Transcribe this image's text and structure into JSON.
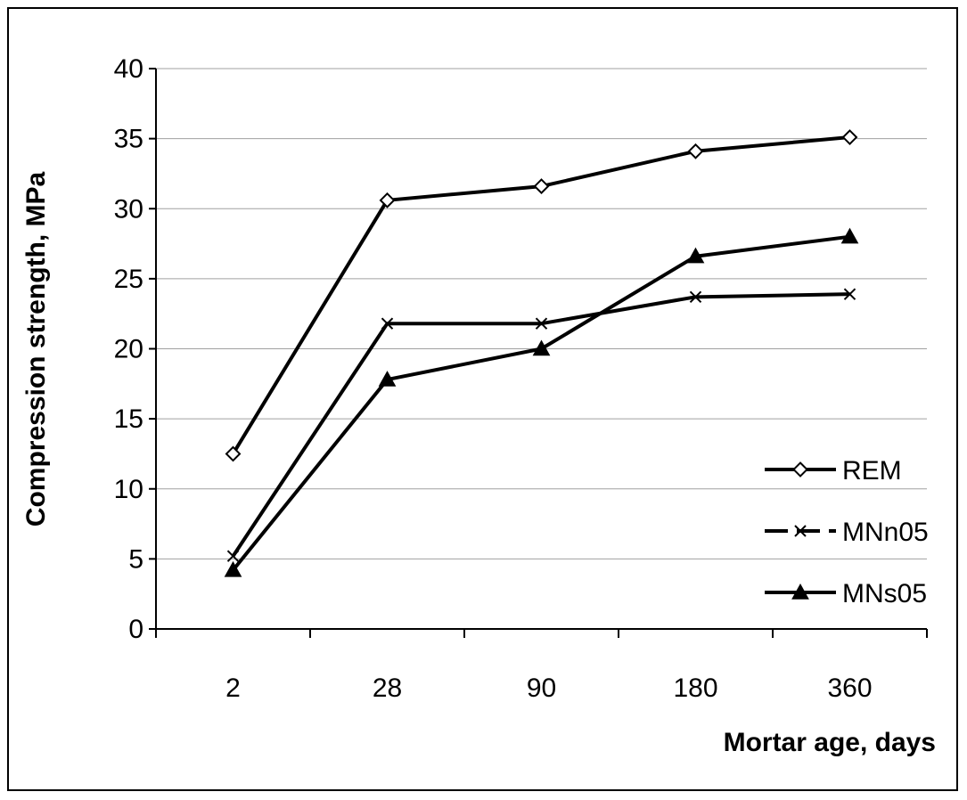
{
  "chart_data": {
    "type": "line",
    "categories": [
      "2",
      "28",
      "90",
      "180",
      "360"
    ],
    "xlabel": "Mortar age, days",
    "ylabel": "Compression strength, MPa",
    "ylim": [
      0,
      40
    ],
    "yticks": [
      "0",
      "5",
      "10",
      "15",
      "20",
      "25",
      "30",
      "35",
      "40"
    ],
    "grid": "horizontal",
    "legend_position": "right",
    "series": [
      {
        "name": "REM",
        "marker": "diamond-open",
        "dash": "solid",
        "values": [
          12.5,
          30.6,
          31.6,
          34.1,
          35.1
        ]
      },
      {
        "name": "MNn05",
        "marker": "x",
        "dash": "dashed",
        "values": [
          5.2,
          21.8,
          21.8,
          23.7,
          23.9
        ]
      },
      {
        "name": "MNs05",
        "marker": "triangle-filled",
        "dash": "solid",
        "values": [
          4.2,
          17.8,
          20.0,
          26.6,
          28.0
        ]
      }
    ],
    "colors": {
      "line": "#000000",
      "grid": "#a0a0a0",
      "background": "#ffffff"
    }
  }
}
